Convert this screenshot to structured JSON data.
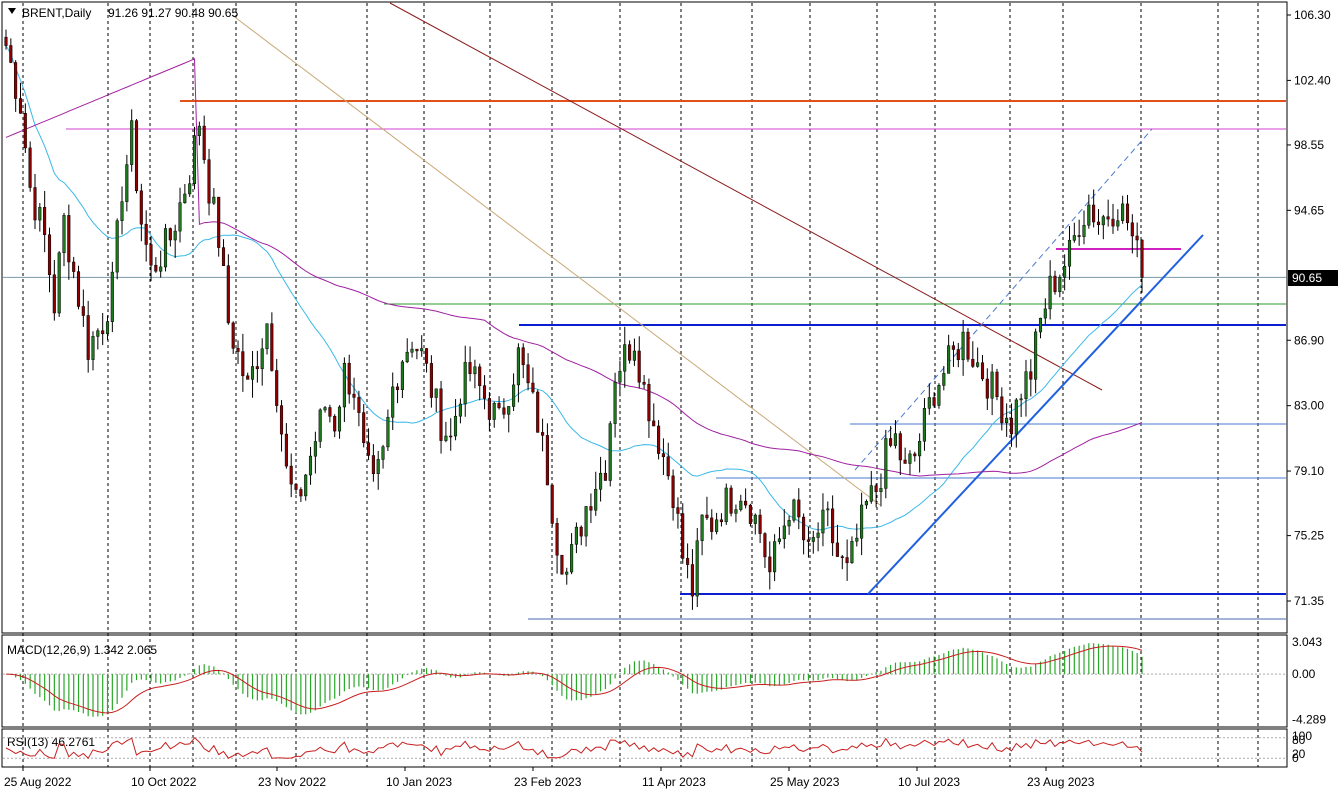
{
  "chart_data": {
    "type": "candlestick",
    "symbol": "BRENT",
    "timeframe": "Daily",
    "header": {
      "symbol_tf": "BRENT,Daily",
      "ohlc": "91.26 91.27 90.48 90.65"
    },
    "current_price": 90.65,
    "price_axis": {
      "ticks": [
        "106.30",
        "102.40",
        "98.55",
        "94.65",
        "90.65",
        "86.90",
        "83.00",
        "79.10",
        "75.25",
        "71.35"
      ],
      "range": [
        70.0,
        107.0
      ]
    },
    "date_axis": {
      "labels": [
        "25 Aug 2022",
        "10 Oct 2022",
        "23 Nov 2022",
        "10 Jan 2023",
        "23 Feb 2023",
        "11 Apr 2023",
        "25 May 2023",
        "10 Jul 2023",
        "23 Aug 2023"
      ]
    },
    "price_path": [
      [
        0,
        104.5
      ],
      [
        3,
        101
      ],
      [
        5,
        96
      ],
      [
        8,
        93
      ],
      [
        10,
        89
      ],
      [
        12,
        94
      ],
      [
        14,
        91
      ],
      [
        17,
        86.5
      ],
      [
        20,
        88
      ],
      [
        22,
        90
      ],
      [
        24,
        96
      ],
      [
        26,
        99
      ],
      [
        28,
        94
      ],
      [
        30,
        91
      ],
      [
        32,
        92
      ],
      [
        34,
        93
      ],
      [
        36,
        95
      ],
      [
        38,
        97
      ],
      [
        40,
        100
      ],
      [
        42,
        96
      ],
      [
        44,
        93
      ],
      [
        46,
        88
      ],
      [
        48,
        86
      ],
      [
        50,
        84
      ],
      [
        52,
        86
      ],
      [
        54,
        88
      ],
      [
        56,
        84
      ],
      [
        58,
        79
      ],
      [
        60,
        77
      ],
      [
        62,
        79
      ],
      [
        64,
        81
      ],
      [
        66,
        83
      ],
      [
        68,
        82
      ],
      [
        70,
        85
      ],
      [
        72,
        84
      ],
      [
        74,
        80
      ],
      [
        76,
        78
      ],
      [
        78,
        80
      ],
      [
        80,
        84
      ],
      [
        82,
        86
      ],
      [
        84,
        87
      ],
      [
        86,
        86
      ],
      [
        88,
        84
      ],
      [
        90,
        82
      ],
      [
        92,
        81
      ],
      [
        94,
        84
      ],
      [
        96,
        85
      ],
      [
        98,
        84
      ],
      [
        100,
        83
      ],
      [
        102,
        82
      ],
      [
        104,
        84
      ],
      [
        106,
        86
      ],
      [
        108,
        84
      ],
      [
        110,
        82
      ],
      [
        112,
        79
      ],
      [
        114,
        75
      ],
      [
        116,
        73
      ],
      [
        118,
        75
      ],
      [
        120,
        77
      ],
      [
        122,
        78.5
      ],
      [
        124,
        79.5
      ],
      [
        126,
        85
      ],
      [
        128,
        86
      ],
      [
        130,
        87
      ],
      [
        132,
        84
      ],
      [
        134,
        82
      ],
      [
        136,
        80
      ],
      [
        138,
        78
      ],
      [
        140,
        74
      ],
      [
        142,
        72
      ],
      [
        144,
        76
      ],
      [
        146,
        76
      ],
      [
        148,
        77
      ],
      [
        150,
        77.5
      ],
      [
        152,
        78
      ],
      [
        154,
        77
      ],
      [
        156,
        75.5
      ],
      [
        158,
        73
      ],
      [
        160,
        75
      ],
      [
        162,
        77
      ],
      [
        164,
        76
      ],
      [
        166,
        74
      ],
      [
        168,
        75.5
      ],
      [
        170,
        76
      ],
      [
        172,
        74
      ],
      [
        174,
        73
      ],
      [
        176,
        75
      ],
      [
        178,
        77
      ],
      [
        180,
        78
      ],
      [
        182,
        80
      ],
      [
        184,
        81
      ],
      [
        186,
        79
      ],
      [
        188,
        80
      ],
      [
        190,
        82
      ],
      [
        192,
        84
      ],
      [
        194,
        85
      ],
      [
        196,
        86
      ],
      [
        198,
        87
      ],
      [
        200,
        86
      ],
      [
        202,
        85
      ],
      [
        204,
        84
      ],
      [
        206,
        83
      ],
      [
        208,
        82
      ],
      [
        210,
        84
      ],
      [
        212,
        85
      ],
      [
        214,
        88
      ],
      [
        216,
        90
      ],
      [
        218,
        91
      ],
      [
        220,
        92
      ],
      [
        222,
        94
      ],
      [
        224,
        95
      ],
      [
        226,
        94
      ],
      [
        228,
        94.5
      ],
      [
        230,
        95
      ],
      [
        232,
        94
      ],
      [
        234,
        92
      ],
      [
        235,
        90.65
      ]
    ],
    "indicators": {
      "macd": {
        "label": "MACD(12,26,9) 1.342 2.065",
        "ticks": [
          "3.043",
          "0.00",
          "-4.289"
        ],
        "range": [
          -4.9,
          3.6
        ]
      },
      "rsi": {
        "label": "RSI(13) 46.2761",
        "ticks": [
          "100",
          "80",
          "20",
          "0"
        ]
      }
    },
    "colors": {
      "up_candle": "#1c7a1c",
      "down_candle": "#8b0000",
      "ma_fast": "#3ab8e8",
      "ma_slow": "#a020a0",
      "horizontal_blue": "#0a1fd0",
      "horizontal_orange": "#e0521a",
      "horizontal_magenta": "#d040d0",
      "horizontal_green": "#2a9a2a",
      "trend_dark_red": "#8b1a1a",
      "trend_tan": "#c8a878",
      "trend_blue": "#2060e0",
      "macd_hist": "#2aa82a",
      "macd_signal": "#c81e1e",
      "rsi_line": "#c81e1e",
      "price_box": "#000000"
    }
  }
}
